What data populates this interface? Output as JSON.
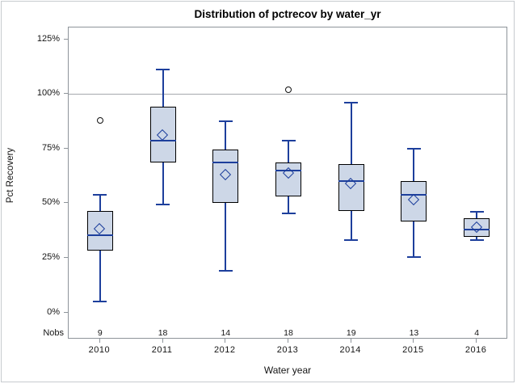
{
  "chart_data": {
    "type": "boxplot",
    "title": "Distribution of pctrecov by water_yr",
    "xlabel": "Water year",
    "ylabel": "Pct Recovery",
    "nobs_label": "Nobs",
    "categories": [
      "2010",
      "2011",
      "2012",
      "2013",
      "2014",
      "2015",
      "2016"
    ],
    "nobs": [
      9,
      18,
      14,
      18,
      19,
      13,
      4
    ],
    "y_ticks": [
      "0%",
      "25%",
      "50%",
      "75%",
      "100%",
      "125%"
    ],
    "ylim": [
      0,
      125
    ],
    "reference_line": 100,
    "legend": "none",
    "grid": "off",
    "series": [
      {
        "category": "2010",
        "n": 9,
        "whisker_low": 5,
        "q1": 28.5,
        "median": 35.5,
        "mean": 38,
        "q3": 46.5,
        "whisker_high": 54,
        "outliers": [
          88
        ]
      },
      {
        "category": "2011",
        "n": 18,
        "whisker_low": 49.5,
        "q1": 68.5,
        "median": 78.5,
        "mean": 81,
        "q3": 94,
        "whisker_high": 111,
        "outliers": []
      },
      {
        "category": "2012",
        "n": 14,
        "whisker_low": 19,
        "q1": 50,
        "median": 68.5,
        "mean": 63,
        "q3": 74.5,
        "whisker_high": 87.5,
        "outliers": []
      },
      {
        "category": "2013",
        "n": 18,
        "whisker_low": 45.5,
        "q1": 53,
        "median": 65,
        "mean": 63.5,
        "q3": 68.5,
        "whisker_high": 78.5,
        "outliers": [
          102
        ]
      },
      {
        "category": "2014",
        "n": 19,
        "whisker_low": 33,
        "q1": 46.5,
        "median": 60,
        "mean": 59,
        "q3": 68,
        "whisker_high": 96,
        "outliers": []
      },
      {
        "category": "2015",
        "n": 13,
        "whisker_low": 25.5,
        "q1": 41.5,
        "median": 54,
        "mean": 51.5,
        "q3": 60,
        "whisker_high": 75,
        "outliers": []
      },
      {
        "category": "2016",
        "n": 4,
        "whisker_low": 33,
        "q1": 34.5,
        "median": 38,
        "mean": 39,
        "q3": 43,
        "whisker_high": 46,
        "outliers": []
      }
    ],
    "colors": {
      "box_fill": "#cdd7e7",
      "box_border": "#000000",
      "whisker_median_mean": "#1d3f9c",
      "reference_line": "#a5a9ae",
      "frame": "#8e949a",
      "outlier_stroke": "#111111"
    }
  }
}
